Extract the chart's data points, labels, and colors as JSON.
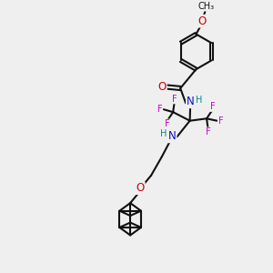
{
  "bg": "#efefef",
  "bc": "#111111",
  "NC": "#1010cc",
  "OC": "#cc0000",
  "FC": "#cc00cc",
  "HC": "#008888",
  "lw": 1.5,
  "fs": 8.5,
  "fs_small": 7.0,
  "xlim": [
    0,
    10
  ],
  "ylim": [
    0,
    10
  ]
}
